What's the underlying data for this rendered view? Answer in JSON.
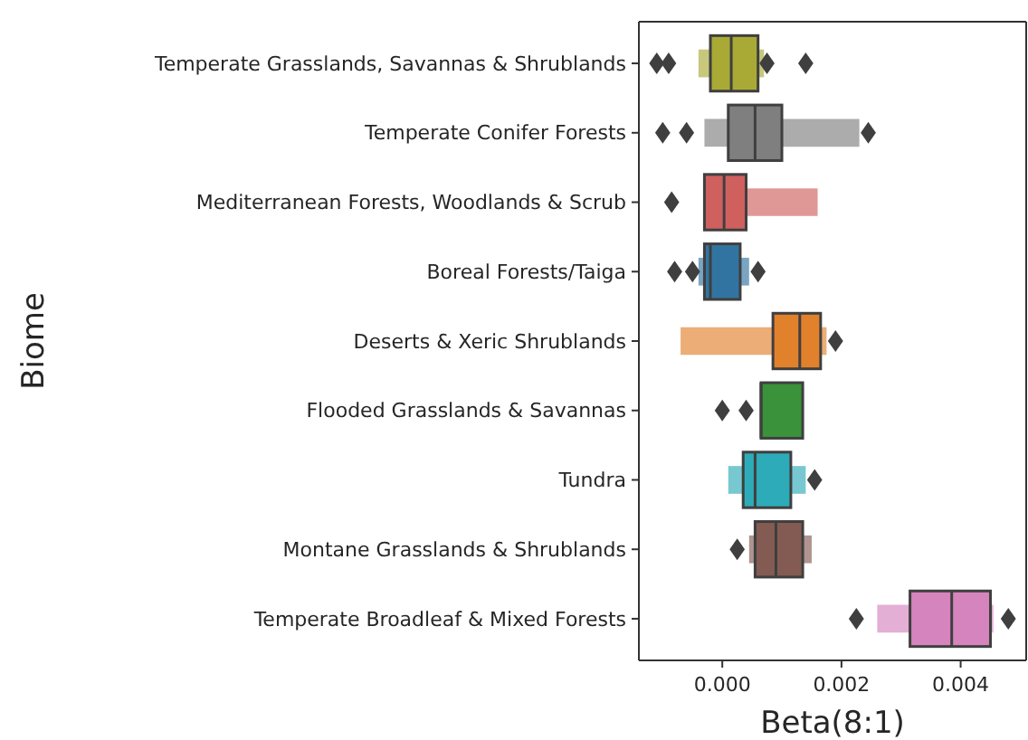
{
  "chart_data": {
    "type": "box",
    "xlabel": "Beta(8:1)",
    "ylabel": "Biome",
    "orientation": "horizontal",
    "categories": [
      "Temperate Grasslands, Savannas & Shrublands",
      "Temperate Conifer Forests",
      "Mediterranean Forests, Woodlands & Scrub",
      "Boreal Forests/Taiga",
      "Deserts & Xeric Shrublands",
      "Flooded Grasslands & Savannas",
      "Tundra",
      "Montane Grasslands & Shrublands",
      "Temperate Broadleaf & Mixed Forests"
    ],
    "colors": [
      "#a9aa35",
      "#7f7f7f",
      "#d0605e",
      "#3274a1",
      "#e1812c",
      "#3a923a",
      "#2eabb8",
      "#845b53",
      "#d684bd"
    ],
    "boxes": [
      {
        "low": -0.0004,
        "q1": -0.0002,
        "median": 0.00015,
        "q3": 0.0006,
        "high": 0.0007,
        "outliers": [
          -0.0011,
          -0.0009,
          0.00075,
          0.0014
        ]
      },
      {
        "low": -0.0003,
        "q1": 0.0001,
        "median": 0.00055,
        "q3": 0.001,
        "high": 0.0023,
        "outliers": [
          -0.001,
          -0.0006,
          0.00245
        ]
      },
      {
        "low": -0.0003,
        "q1": -0.0003,
        "median": 3e-05,
        "q3": 0.0004,
        "high": 0.0016,
        "outliers": [
          -0.00085
        ]
      },
      {
        "low": -0.0004,
        "q1": -0.0003,
        "median": -0.0002,
        "q3": 0.0003,
        "high": 0.00045,
        "outliers": [
          -0.0008,
          -0.0005,
          0.0006
        ]
      },
      {
        "low": -0.0007,
        "q1": 0.00085,
        "median": 0.0013,
        "q3": 0.00165,
        "high": 0.00175,
        "outliers": [
          0.0019
        ]
      },
      {
        "low": 0.00065,
        "q1": 0.00065,
        "median": 0.00065,
        "q3": 0.00135,
        "high": 0.00135,
        "outliers": [
          0.0,
          0.0004
        ]
      },
      {
        "low": 0.0001,
        "q1": 0.00035,
        "median": 0.00055,
        "q3": 0.00115,
        "high": 0.0014,
        "outliers": [
          0.00155
        ]
      },
      {
        "low": 0.00045,
        "q1": 0.00055,
        "median": 0.0009,
        "q3": 0.00135,
        "high": 0.0015,
        "outliers": [
          0.00025
        ]
      },
      {
        "low": 0.0026,
        "q1": 0.00315,
        "median": 0.00385,
        "q3": 0.0045,
        "high": 0.00455,
        "outliers": [
          0.00225,
          0.0048
        ]
      }
    ],
    "xlim": [
      -0.0014,
      0.0051
    ],
    "xticks": [
      {
        "value": 0,
        "label": "0.000"
      },
      {
        "value": 0.002,
        "label": "0.002"
      },
      {
        "value": 0.004,
        "label": "0.004"
      }
    ],
    "marker": "diamond",
    "grid": false
  }
}
